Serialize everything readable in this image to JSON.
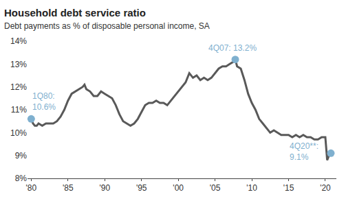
{
  "chart_data": {
    "type": "line",
    "title": "Household debt service ratio",
    "subtitle": "Debt payments as % of disposable personal income, SA",
    "color": "#595959",
    "x": [
      1980.0,
      1980.25,
      1980.5,
      1980.75,
      1981.0,
      1981.5,
      1982.0,
      1982.5,
      1983.0,
      1983.5,
      1984.0,
      1984.5,
      1985.0,
      1985.5,
      1986.0,
      1986.5,
      1987.0,
      1987.25,
      1987.5,
      1988.0,
      1988.5,
      1989.0,
      1989.5,
      1990.0,
      1990.5,
      1991.0,
      1991.5,
      1992.0,
      1992.5,
      1993.0,
      1993.5,
      1994.0,
      1994.5,
      1995.0,
      1995.5,
      1996.0,
      1996.5,
      1997.0,
      1997.5,
      1998.0,
      1998.5,
      1999.0,
      1999.5,
      2000.0,
      2000.5,
      2001.0,
      2001.5,
      2002.0,
      2002.5,
      2003.0,
      2003.5,
      2004.0,
      2004.5,
      2005.0,
      2005.5,
      2006.0,
      2006.5,
      2007.0,
      2007.5,
      2007.75,
      2008.0,
      2008.5,
      2009.0,
      2009.5,
      2010.0,
      2010.5,
      2011.0,
      2011.5,
      2012.0,
      2012.5,
      2013.0,
      2013.5,
      2014.0,
      2014.5,
      2015.0,
      2015.5,
      2016.0,
      2016.5,
      2017.0,
      2017.5,
      2018.0,
      2018.5,
      2019.0,
      2019.5,
      2020.0,
      2020.25,
      2020.5,
      2020.75
    ],
    "values": [
      10.6,
      10.4,
      10.3,
      10.3,
      10.4,
      10.3,
      10.4,
      10.4,
      10.4,
      10.5,
      10.7,
      11.0,
      11.4,
      11.7,
      11.8,
      11.9,
      12.0,
      12.1,
      11.9,
      11.8,
      11.6,
      11.6,
      11.8,
      11.7,
      11.6,
      11.5,
      11.2,
      10.8,
      10.5,
      10.4,
      10.3,
      10.4,
      10.6,
      10.9,
      11.2,
      11.3,
      11.3,
      11.4,
      11.3,
      11.3,
      11.2,
      11.4,
      11.6,
      11.8,
      12.0,
      12.2,
      12.6,
      12.4,
      12.5,
      12.3,
      12.4,
      12.3,
      12.4,
      12.6,
      12.8,
      12.9,
      12.9,
      13.0,
      13.1,
      13.2,
      12.9,
      12.8,
      12.3,
      11.7,
      11.3,
      11.0,
      10.6,
      10.4,
      10.2,
      10.0,
      10.1,
      10.0,
      9.9,
      9.9,
      9.9,
      9.8,
      9.9,
      9.8,
      9.9,
      9.8,
      9.8,
      9.7,
      9.7,
      9.8,
      9.8,
      8.8,
      9.0,
      9.1
    ],
    "xlim": [
      1979.5,
      2021.5
    ],
    "xticks": [
      {
        "value": 1980,
        "label": "'80"
      },
      {
        "value": 1985,
        "label": "'85"
      },
      {
        "value": 1990,
        "label": "'90"
      },
      {
        "value": 1995,
        "label": "'95"
      },
      {
        "value": 2000,
        "label": "'00"
      },
      {
        "value": 2005,
        "label": "'05"
      },
      {
        "value": 2010,
        "label": "'10"
      },
      {
        "value": 2015,
        "label": "'15"
      },
      {
        "value": 2020,
        "label": "'20"
      }
    ],
    "ylim": [
      8,
      14
    ],
    "yticks": [
      {
        "value": 8,
        "label": "8%"
      },
      {
        "value": 9,
        "label": "9%"
      },
      {
        "value": 10,
        "label": "10%"
      },
      {
        "value": 11,
        "label": "11%"
      },
      {
        "value": 12,
        "label": "12%"
      },
      {
        "value": 13,
        "label": "13%"
      },
      {
        "value": 14,
        "label": "14%"
      }
    ],
    "grid": false,
    "annotations": [
      {
        "x": 1980.0,
        "y": 10.6,
        "text": [
          "1Q80:",
          "10.6%"
        ],
        "color": "#7fb0cf"
      },
      {
        "x": 2007.75,
        "y": 13.2,
        "text": [
          "4Q07: 13.2%"
        ],
        "color": "#7fb0cf"
      },
      {
        "x": 2020.75,
        "y": 9.1,
        "text": [
          "4Q20**:",
          "9.1%"
        ],
        "color": "#7fb0cf"
      }
    ]
  }
}
